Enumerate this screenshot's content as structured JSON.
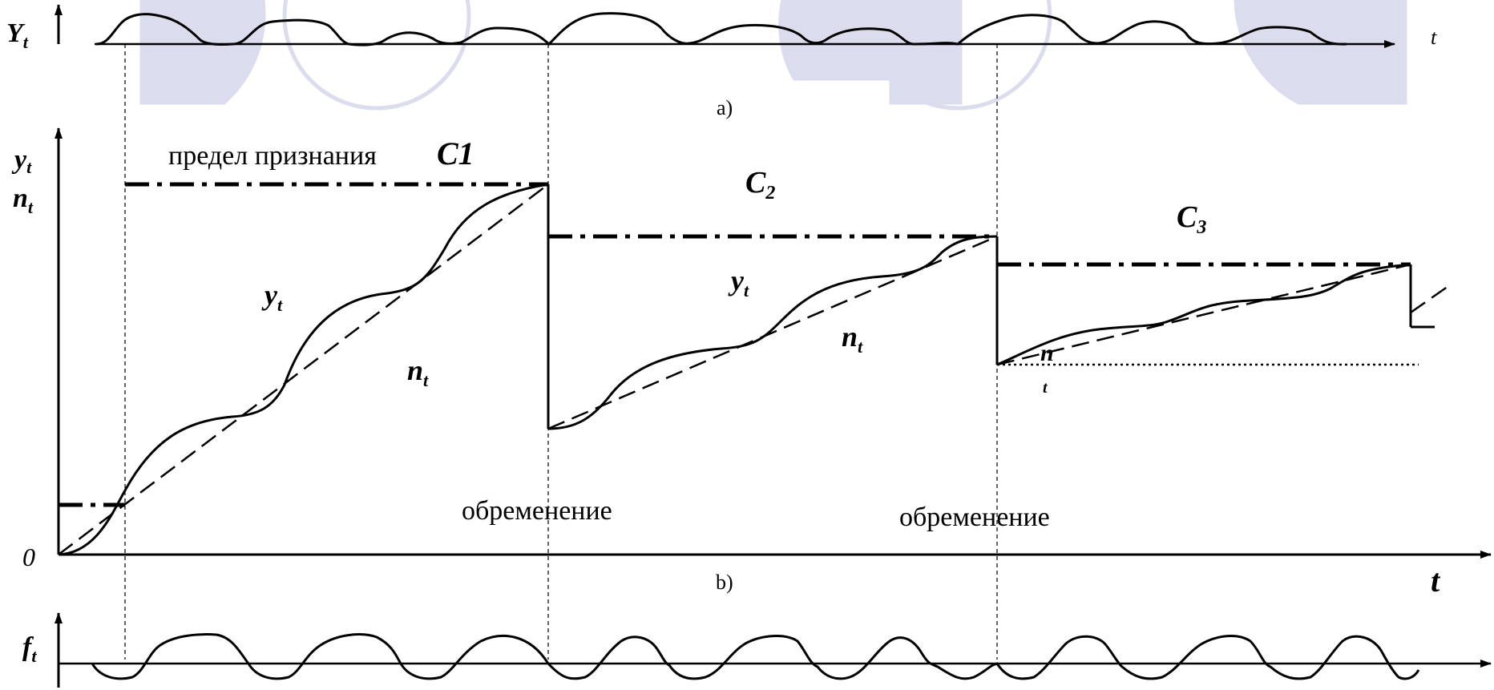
{
  "panel_a": {
    "axis_label": "Y",
    "axis_label_sub": "t",
    "t_label": "t",
    "caption": "a)"
  },
  "panel_b": {
    "y_label_1": "y",
    "y_label_1_sub": "t",
    "y_label_2": "n",
    "y_label_2_sub": "t",
    "origin_label": "0",
    "t_label": "t",
    "caption": "b)",
    "limit_label": "предел признания",
    "c1": "C1",
    "c2": "C",
    "c2_sub": "2",
    "c3": "C",
    "c3_sub": "3",
    "curve_y_label": "y",
    "curve_y_sub": "t",
    "curve_n_label": "n",
    "curve_n_sub": "t",
    "encumbrance_label_1": "обременение",
    "encumbrance_label_2": "обременение",
    "small_n_label": "n",
    "small_n_sub": "t"
  },
  "panel_c": {
    "axis_label": "f",
    "axis_label_sub": "t"
  },
  "watermark": {
    "color": "#d9d9ee"
  }
}
